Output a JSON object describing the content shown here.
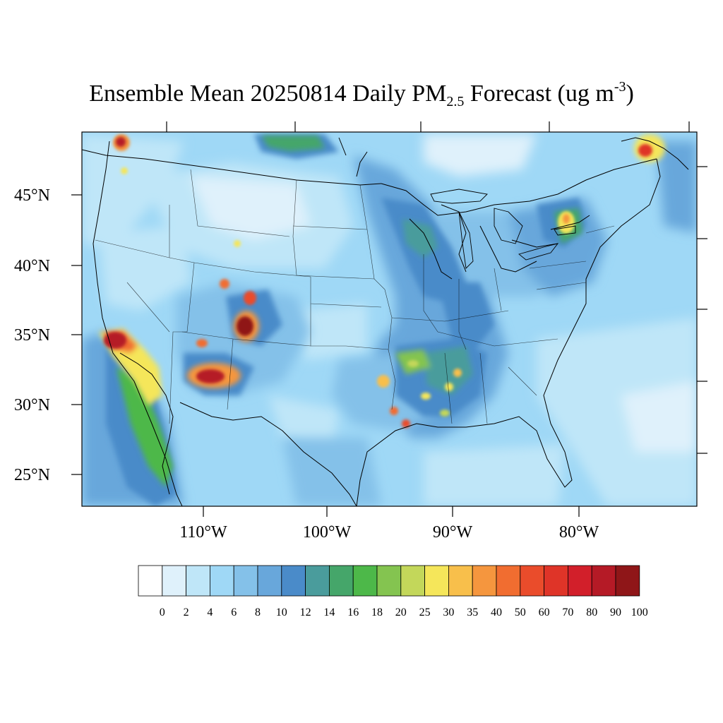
{
  "title": {
    "main": "Ensemble Mean 20250814 Daily PM",
    "subscript": "2.5",
    "forecast": " Forecast (ug m",
    "superscript": "-3",
    "close": ")"
  },
  "map": {
    "projection": "lambert-conformal",
    "region": "contiguous-us",
    "variable": "PM2.5",
    "units": "ug m-3",
    "date": "20250814",
    "background_level": "4-8",
    "lat_labels": [
      {
        "value": 45,
        "text": "45°N"
      },
      {
        "value": 40,
        "text": "40°N"
      },
      {
        "value": 35,
        "text": "35°N"
      },
      {
        "value": 30,
        "text": "30°N"
      },
      {
        "value": 25,
        "text": "25°N"
      }
    ],
    "lon_labels": [
      {
        "value": -110,
        "text": "110°W"
      },
      {
        "value": -100,
        "text": "100°W"
      },
      {
        "value": -90,
        "text": "90°W"
      },
      {
        "value": -80,
        "text": "80°W"
      }
    ],
    "hotspots": [
      {
        "name": "southern-california",
        "level": "50-100"
      },
      {
        "name": "central-arizona",
        "level": "60-100"
      },
      {
        "name": "southern-colorado",
        "level": "60-100"
      },
      {
        "name": "northern-washington",
        "level": "50-90"
      },
      {
        "name": "quebec",
        "level": "40-80"
      },
      {
        "name": "ontario-new-york",
        "level": "25-40"
      },
      {
        "name": "louisiana",
        "level": "30-50"
      },
      {
        "name": "arkansas",
        "level": "20-35"
      }
    ]
  },
  "colorbar": {
    "levels": [
      "0",
      "2",
      "4",
      "6",
      "8",
      "10",
      "12",
      "14",
      "16",
      "18",
      "20",
      "25",
      "30",
      "35",
      "40",
      "50",
      "60",
      "70",
      "80",
      "90",
      "100"
    ],
    "colors": [
      "#ffffff",
      "#dff1fb",
      "#bfe6f8",
      "#9fd8f6",
      "#84c1e9",
      "#68a7db",
      "#4a8bc9",
      "#4a9c9c",
      "#45a66a",
      "#4db849",
      "#84c450",
      "#c3d75a",
      "#f5e65a",
      "#f8bf4b",
      "#f5963e",
      "#f16d30",
      "#ea4c2b",
      "#df3428",
      "#d21f2a",
      "#b51a26",
      "#8f1618"
    ]
  }
}
